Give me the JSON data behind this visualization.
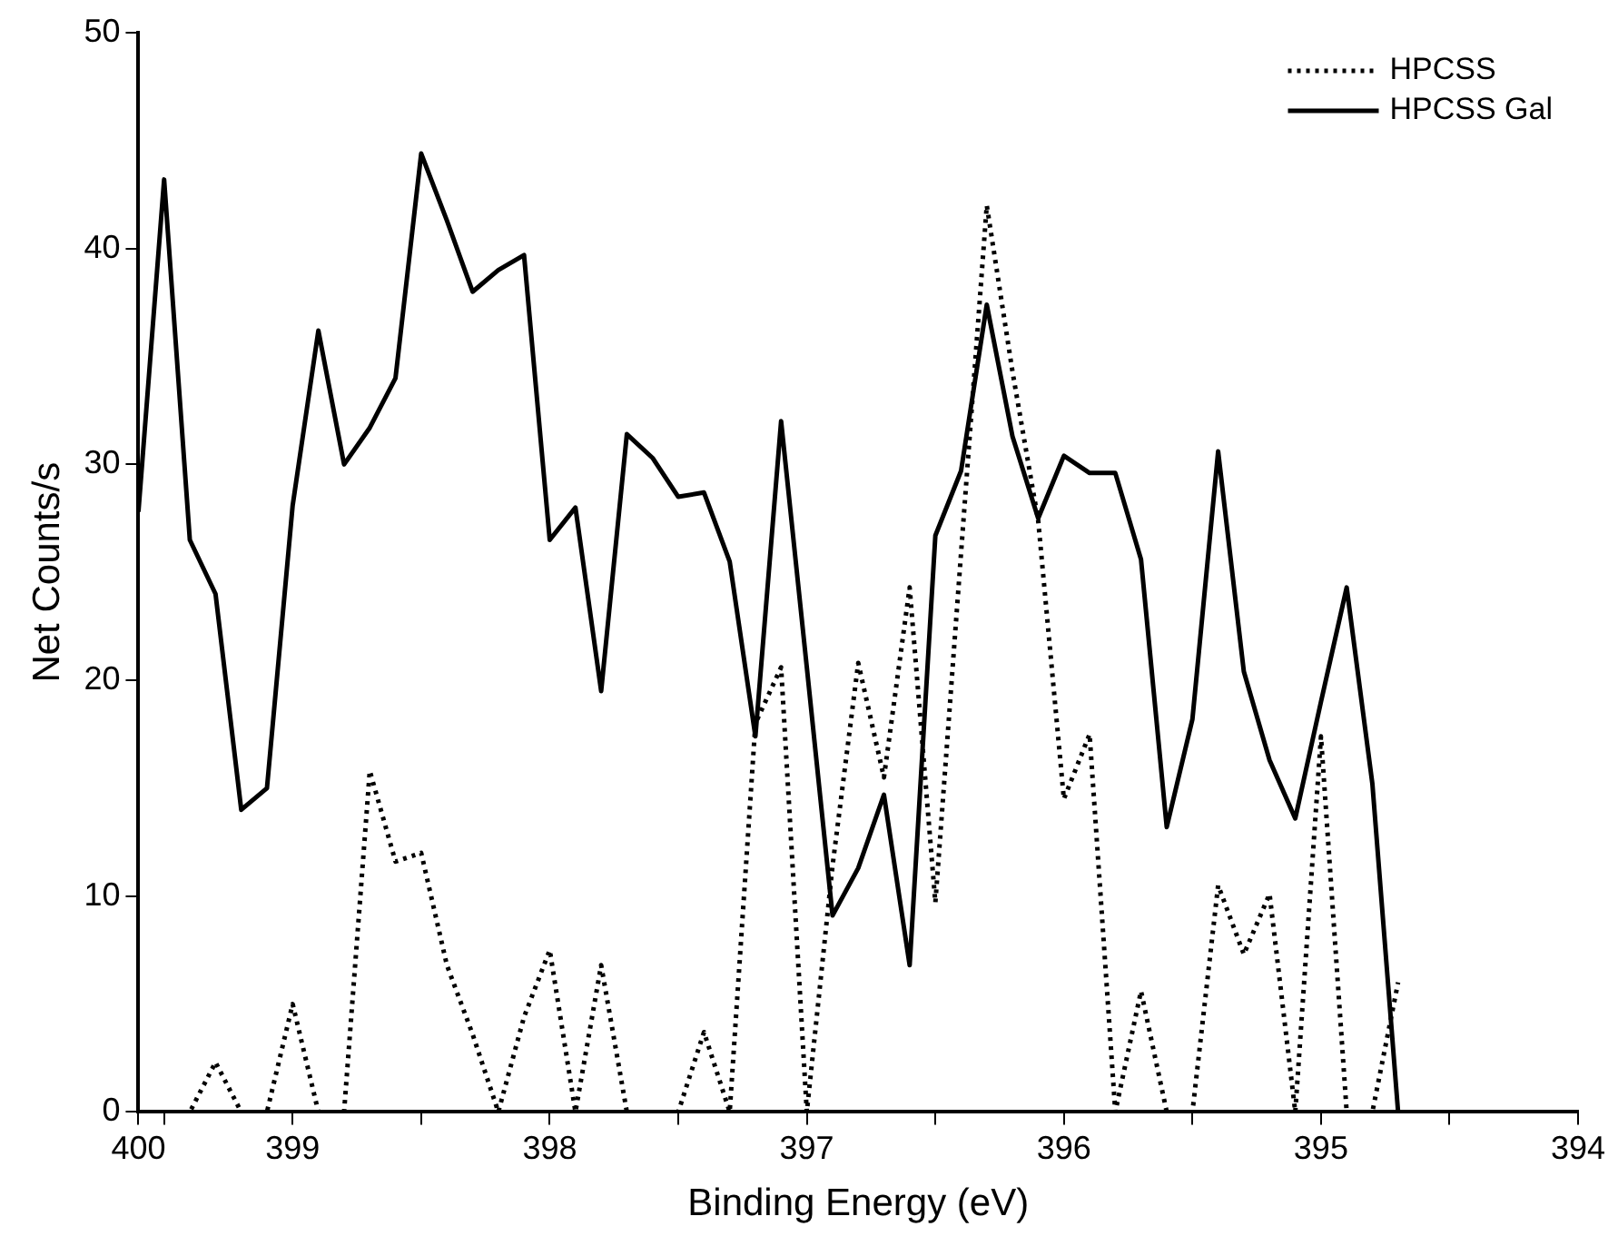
{
  "chart_data": {
    "type": "line",
    "xlabel": "Binding Energy (eV)",
    "ylabel": "Net Counts/s",
    "x": [
      399.6,
      399.5,
      399.4,
      399.3,
      399.2,
      399.1,
      399.0,
      398.9,
      398.8,
      398.7,
      398.6,
      398.5,
      398.4,
      398.3,
      398.2,
      398.1,
      398.0,
      397.9,
      397.8,
      397.7,
      397.6,
      397.5,
      397.4,
      397.3,
      397.2,
      397.1,
      397.0,
      396.9,
      396.8,
      396.7,
      396.6,
      396.5,
      396.4,
      396.3,
      396.2,
      396.1,
      396.0,
      395.9,
      395.8,
      395.7,
      395.6,
      395.5,
      395.4,
      395.3,
      395.2,
      395.1,
      395.0,
      394.9,
      394.8,
      394.7
    ],
    "series": [
      {
        "name": "HPCSS",
        "color": "#000000",
        "line_style": "dotted",
        "values": [
          0,
          0,
          0,
          2.3,
          0,
          0,
          5.0,
          0,
          0,
          15.8,
          11.6,
          12.0,
          6.8,
          3.6,
          0,
          4.4,
          7.5,
          0,
          6.8,
          0,
          0,
          0,
          3.7,
          0,
          18,
          20.6,
          0,
          11.4,
          20.8,
          15.5,
          24.3,
          9.7,
          25.9,
          42.0,
          34.3,
          27.4,
          14.5,
          17.5,
          0,
          5.6,
          0,
          0,
          10.5,
          7.3,
          10.1,
          0,
          17.4,
          0,
          0,
          6.0
        ]
      },
      {
        "name": "HPCSS Gal",
        "color": "#000000",
        "line_style": "solid",
        "values": [
          27.8,
          43.2,
          26.5,
          24.0,
          14.0,
          15.0,
          28.1,
          36.2,
          30.0,
          31.7,
          34.0,
          44.4,
          41.3,
          38.0,
          39.0,
          39.7,
          26.5,
          28.0,
          19.5,
          31.4,
          30.3,
          28.5,
          28.7,
          25.5,
          17.4,
          32.0,
          20.6,
          9.1,
          11.3,
          14.7,
          6.8,
          26.7,
          29.7,
          37.4,
          31.3,
          27.5,
          30.4,
          29.6,
          29.6,
          25.6,
          13.2,
          18.2,
          30.6,
          20.4,
          16.3,
          13.6,
          19.0,
          24.3,
          15.2,
          0
        ]
      }
    ],
    "xlim": [
      399.6,
      394
    ],
    "xticks": [
      {
        "value": 399.6,
        "label": "400"
      },
      {
        "value": 399.5,
        "label": null
      },
      399,
      {
        "value": 398.5,
        "label": null
      },
      398,
      {
        "value": 397.5,
        "label": null
      },
      397,
      {
        "value": 396.5,
        "label": null
      },
      396,
      {
        "value": 395.5,
        "label": null
      },
      395,
      {
        "value": 394.5,
        "label": null
      },
      394
    ],
    "ylim": [
      0,
      50
    ],
    "yticks": [
      0,
      10,
      20,
      30,
      40,
      50
    ],
    "grid": false,
    "legend": "top right",
    "marker": "none"
  }
}
